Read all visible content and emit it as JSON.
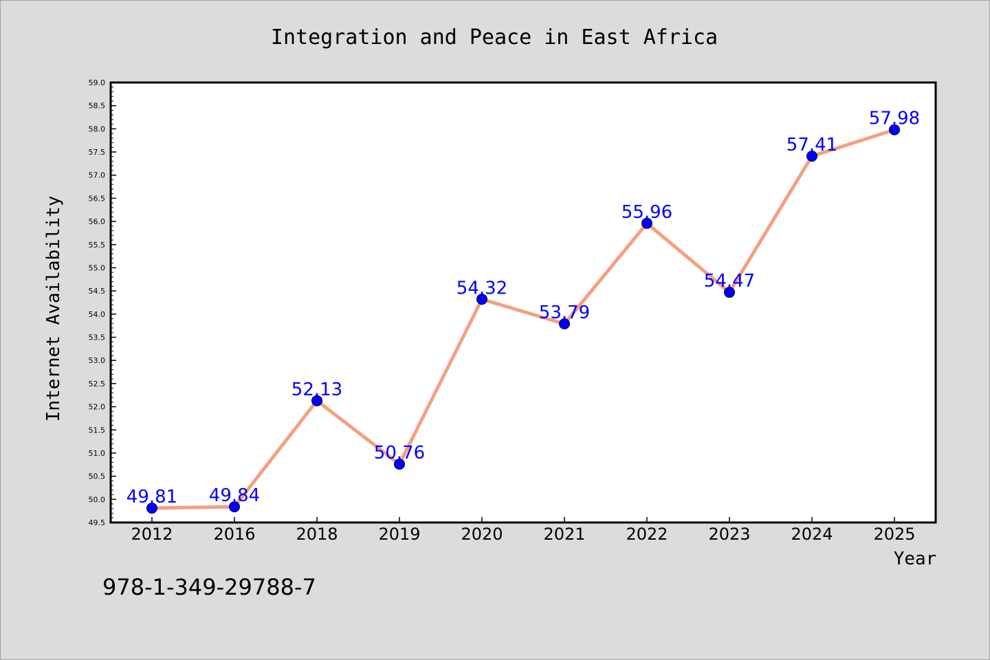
{
  "chart_data": {
    "type": "line",
    "title": "Integration and Peace in East Africa",
    "xlabel": "Year",
    "ylabel": "Internet Availability",
    "categories": [
      "2012",
      "2016",
      "2018",
      "2019",
      "2020",
      "2021",
      "2022",
      "2023",
      "2024",
      "2025"
    ],
    "values": [
      49.81,
      49.84,
      52.13,
      50.76,
      54.32,
      53.79,
      55.96,
      54.47,
      57.41,
      57.98
    ],
    "data_labels": [
      "49.81",
      "49.84",
      "52.13",
      "50.76",
      "54.32",
      "53.79",
      "55.96",
      "54.47",
      "57.41",
      "57.98"
    ],
    "ylim": [
      49.5,
      59.0
    ],
    "yticks": [
      "49.5",
      "50.0",
      "50.5",
      "51.0",
      "51.5",
      "52.0",
      "52.5",
      "53.0",
      "53.5",
      "54.0",
      "54.5",
      "55.0",
      "55.5",
      "56.0",
      "56.5",
      "57.0",
      "57.5",
      "58.0",
      "58.5",
      "59.0"
    ],
    "grid": false,
    "legend": "none",
    "line_color": "#f4a07e",
    "marker_color": "#0000ff",
    "label_color": "#0000ff"
  },
  "footer": {
    "isbn": "978-1-349-29788-7"
  }
}
